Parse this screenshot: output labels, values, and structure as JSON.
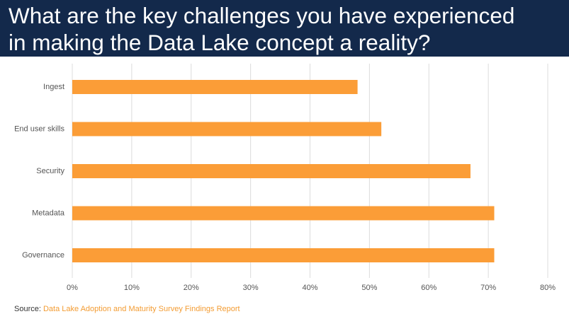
{
  "header": {
    "title_line1": "What are the key challenges you have experienced",
    "title_line2": "in making the Data Lake concept a reality?"
  },
  "colors": {
    "header_bg": "#13294b",
    "bar": "#fb9d37",
    "grid": "#dcdcdc",
    "source_text": "#f39c33"
  },
  "chart_data": {
    "type": "bar",
    "orientation": "horizontal",
    "categories": [
      "Ingest",
      "End user skills",
      "Security",
      "Metadata",
      "Governance"
    ],
    "values": [
      48,
      52,
      67,
      71,
      71
    ],
    "unit": "%",
    "xlim": [
      0,
      80
    ],
    "xticks": [
      "0%",
      "10%",
      "20%",
      "30%",
      "40%",
      "50%",
      "60%",
      "70%",
      "80%"
    ],
    "grid": "vertical",
    "legend": "none"
  },
  "source": {
    "label": "Source:",
    "text": "Data Lake Adoption and Maturity Survey Findings Report"
  }
}
